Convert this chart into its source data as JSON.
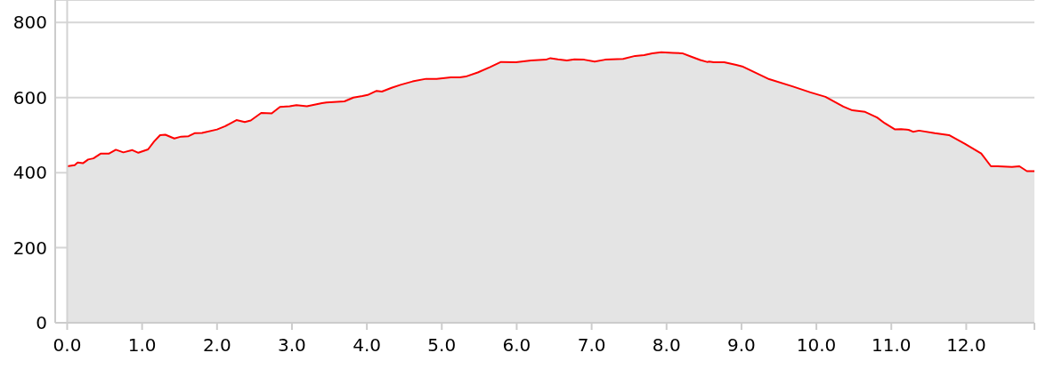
{
  "chart_data": {
    "type": "area",
    "x": [
      0,
      0.1,
      0.14,
      0.21,
      0.28,
      0.35,
      0.45,
      0.56,
      0.65,
      0.75,
      0.87,
      0.95,
      1.08,
      1.16,
      1.24,
      1.31,
      1.43,
      1.52,
      1.62,
      1.7,
      1.8,
      2.0,
      2.11,
      2.26,
      2.37,
      2.45,
      2.59,
      2.73,
      2.84,
      2.97,
      3.06,
      3.2,
      3.4,
      3.46,
      3.7,
      3.82,
      3.94,
      4.01,
      4.13,
      4.2,
      4.33,
      4.45,
      4.61,
      4.79,
      4.93,
      5.12,
      5.24,
      5.32,
      5.48,
      5.64,
      5.79,
      5.99,
      6.19,
      6.39,
      6.45,
      6.55,
      6.67,
      6.77,
      6.9,
      7.04,
      7.18,
      7.42,
      7.58,
      7.7,
      7.81,
      7.93,
      8.09,
      8.21,
      8.33,
      8.45,
      8.54,
      8.57,
      8.63,
      8.77,
      8.93,
      9.01,
      9.37,
      9.68,
      9.92,
      10.12,
      10.36,
      10.48,
      10.65,
      10.81,
      10.91,
      11.05,
      11.13,
      11.23,
      11.29,
      11.37,
      11.58,
      11.77,
      11.98,
      12.2,
      12.33,
      12.42,
      12.61,
      12.71,
      12.81,
      12.91
    ],
    "series": [
      {
        "color": "#ff0000",
        "values": [
          417,
          420,
          427,
          425,
          435,
          438,
          451,
          451,
          461,
          454,
          460,
          453,
          462,
          483,
          500,
          501,
          491,
          496,
          497,
          505,
          506,
          515,
          524,
          540,
          535,
          539,
          559,
          558,
          575,
          577,
          580,
          577,
          585,
          587,
          590,
          600,
          604,
          607,
          618,
          616,
          626,
          634,
          643,
          650,
          650,
          654,
          654,
          656,
          667,
          681,
          695,
          694,
          699,
          701,
          705,
          702,
          699,
          702,
          701,
          696,
          701,
          703,
          711,
          713,
          718,
          721,
          719,
          718,
          709,
          700,
          695,
          696,
          694,
          694,
          687,
          683,
          649,
          630,
          614,
          602,
          576,
          566,
          562,
          547,
          532,
          515,
          516,
          514,
          509,
          512,
          505,
          500,
          477,
          451,
          417,
          417,
          415,
          417,
          404,
          404
        ]
      }
    ],
    "xlim": [
      -0.16,
      12.91
    ],
    "ylim": [
      0,
      860
    ],
    "xticks": [
      {
        "value": 0,
        "label": "0.0"
      },
      {
        "value": 1,
        "label": "1.0"
      },
      {
        "value": 2,
        "label": "2.0"
      },
      {
        "value": 3,
        "label": "3.0"
      },
      {
        "value": 4,
        "label": "4.0"
      },
      {
        "value": 5,
        "label": "5.0"
      },
      {
        "value": 6,
        "label": "6.0"
      },
      {
        "value": 7,
        "label": "7.0"
      },
      {
        "value": 8,
        "label": "8.0"
      },
      {
        "value": 9,
        "label": "9.0"
      },
      {
        "value": 10,
        "label": "10.0"
      },
      {
        "value": 11,
        "label": "11.0"
      },
      {
        "value": 12,
        "label": "12.0"
      },
      {
        "value": 12.91,
        "label": null
      }
    ],
    "yticks": [
      0,
      200,
      400,
      600,
      800
    ],
    "grid": "y",
    "ref_lines": [
      {
        "axis": "x",
        "value": 0,
        "color": "#d3d3d3"
      }
    ]
  }
}
